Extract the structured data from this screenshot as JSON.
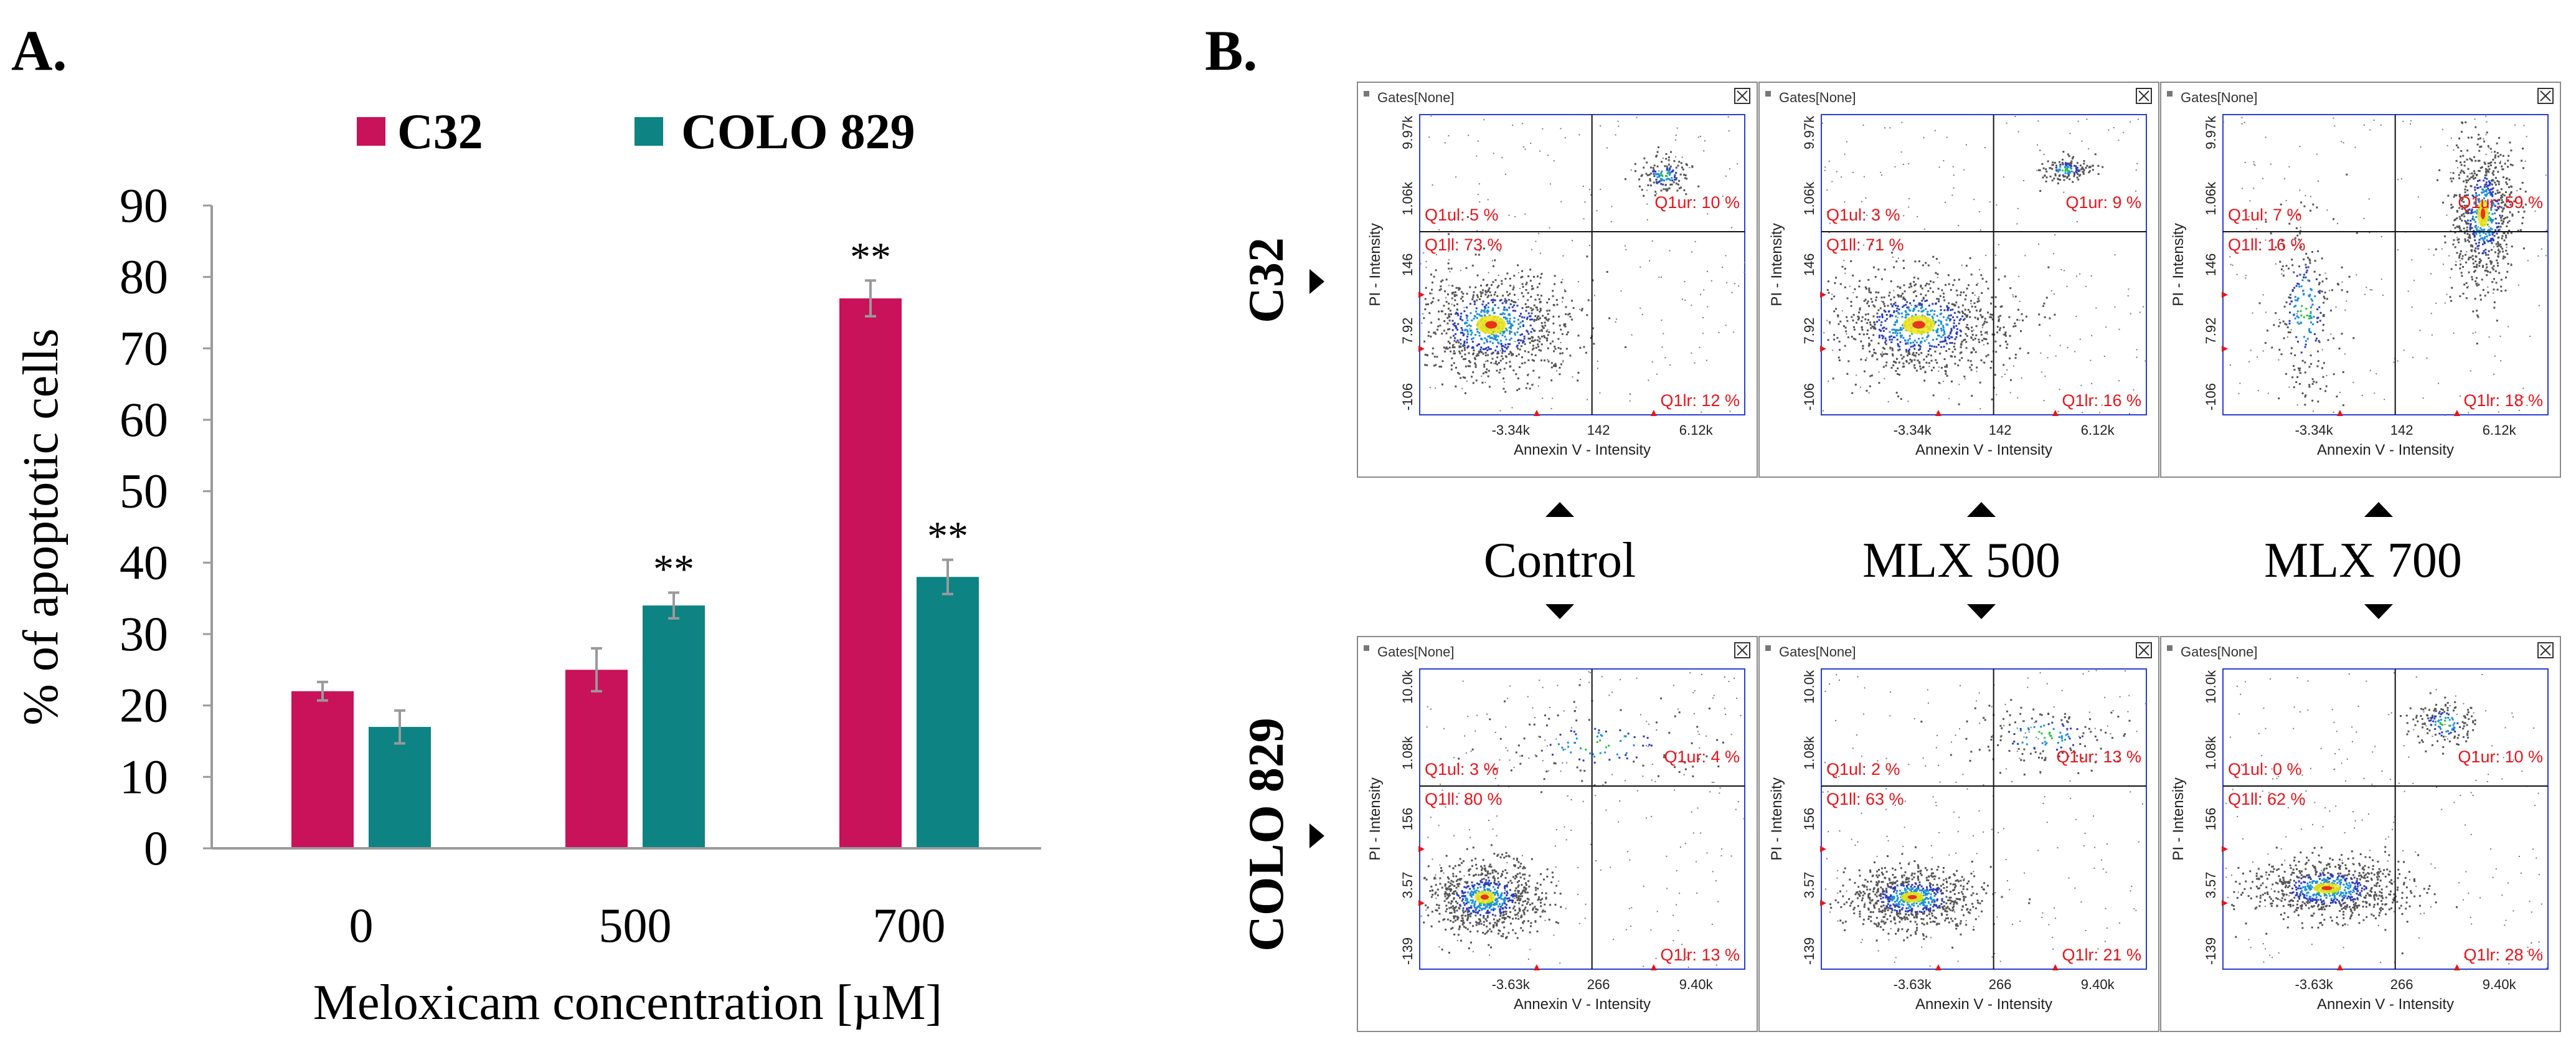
{
  "panel_a_label": "A.",
  "panel_b_label": "B.",
  "chart_data": {
    "type": "bar",
    "title": "",
    "xlabel": "Meloxicam concentration [µM]",
    "ylabel": "% of apoptotic cells",
    "ylim": [
      0,
      90
    ],
    "yticks": [
      0,
      10,
      20,
      30,
      40,
      50,
      60,
      70,
      80,
      90
    ],
    "categories": [
      "0",
      "500",
      "700"
    ],
    "legend_position": "top",
    "series": [
      {
        "name": "C32",
        "color": "#c8125a",
        "values": [
          22,
          25,
          77
        ],
        "errors": [
          1.3,
          3.0,
          2.5
        ],
        "significance": [
          "",
          "",
          "**"
        ]
      },
      {
        "name": "COLO 829",
        "color": "#0d8383",
        "values": [
          17,
          34,
          38
        ],
        "errors": [
          2.3,
          1.8,
          2.4
        ],
        "significance": [
          "",
          "**",
          "**"
        ]
      }
    ]
  },
  "flow": {
    "gates_label": "Gates[None]",
    "x_axis_label": "Annexin V - Intensity",
    "y_axis_label": "PI - Intensity",
    "conditions": [
      "Control",
      "MLX 500",
      "MLX 700"
    ],
    "rows": [
      {
        "label": "C32",
        "x_ticks": [
          "-3.34k",
          "142",
          "6.12k"
        ],
        "y_ticks": [
          "9.97k",
          "1.06k",
          "146",
          "7.92",
          "-106"
        ],
        "plots": [
          {
            "q1ul": "Q1ul: 5 %",
            "q1ur": "Q1ur: 10 %",
            "q1ll": "Q1ll: 73 %",
            "q1lr": "Q1lr: 12 %"
          },
          {
            "q1ul": "Q1ul: 3 %",
            "q1ur": "Q1ur: 9 %",
            "q1ll": "Q1ll: 71 %",
            "q1lr": "Q1lr: 16 %"
          },
          {
            "q1ul": "Q1ul: 7 %",
            "q1ur": "Q1ur: 59 %",
            "q1ll": "Q1ll: 16 %",
            "q1lr": "Q1lr: 18 %"
          }
        ]
      },
      {
        "label": "COLO 829",
        "x_ticks": [
          "-3.63k",
          "266",
          "9.40k"
        ],
        "y_ticks": [
          "10.0k",
          "1.08k",
          "156",
          "3.57",
          "-139"
        ],
        "plots": [
          {
            "q1ul": "Q1ul: 3 %",
            "q1ur": "Q1ur: 4 %",
            "q1ll": "Q1ll: 80 %",
            "q1lr": "Q1lr: 13 %"
          },
          {
            "q1ul": "Q1ul: 2 %",
            "q1ur": "Q1ur: 13 %",
            "q1ll": "Q1ll: 63 %",
            "q1lr": "Q1lr: 21 %"
          },
          {
            "q1ul": "Q1ul: 0 %",
            "q1ur": "Q1ur: 10 %",
            "q1ll": "Q1ll: 62 %",
            "q1lr": "Q1lr: 28 %"
          }
        ]
      }
    ]
  }
}
